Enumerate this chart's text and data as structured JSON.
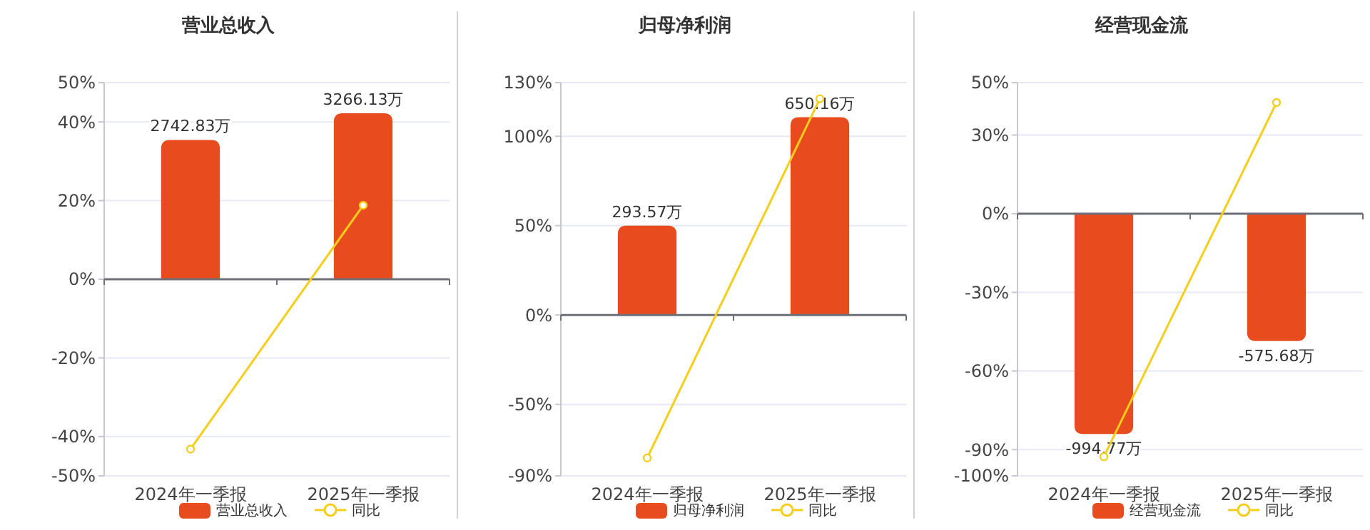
{
  "chart_data": [
    {
      "type": "bar",
      "title": "营业总收入",
      "categories": [
        "2024年一季报",
        "2025年一季报"
      ],
      "ylim": [
        -50,
        50
      ],
      "yticks": [
        {
          "value": -50,
          "label": "-50%"
        },
        {
          "value": -40,
          "label": "-40%"
        },
        {
          "value": -20,
          "label": "-20%"
        },
        {
          "value": 0,
          "label": "0%"
        },
        {
          "value": 20,
          "label": "20%"
        },
        {
          "value": 40,
          "label": "40%"
        },
        {
          "value": 50,
          "label": "50%"
        }
      ],
      "y2lim": [
        -3870,
        3870
      ],
      "grid": "y",
      "legend": "bottom",
      "series": [
        {
          "name": "营业总收入",
          "axis": "y2",
          "color": "#e84c1e",
          "values": [
            2742.83,
            3266.13
          ],
          "value_labels": [
            "2742.83万",
            "3266.13万"
          ]
        },
        {
          "name": "同比",
          "type": "line",
          "color": "#f5cd1c",
          "marker": "circle",
          "values": [
            -43.2,
            18.8
          ]
        }
      ]
    },
    {
      "type": "bar",
      "title": "归母净利润",
      "categories": [
        "2024年一季报",
        "2025年一季报"
      ],
      "ylim": [
        -90,
        130
      ],
      "yticks": [
        {
          "value": -90,
          "label": "-90%"
        },
        {
          "value": -50,
          "label": "-50%"
        },
        {
          "value": 0,
          "label": "0%"
        },
        {
          "value": 50,
          "label": "50%"
        },
        {
          "value": 100,
          "label": "100%"
        },
        {
          "value": 130,
          "label": "130%"
        }
      ],
      "y2lim": [
        -530,
        764
      ],
      "grid": "y",
      "legend": "bottom",
      "series": [
        {
          "name": "归母净利润",
          "axis": "y2",
          "color": "#e84c1e",
          "values": [
            293.57,
            650.16
          ],
          "value_labels": [
            "293.57万",
            "650.16万"
          ]
        },
        {
          "name": "同比",
          "type": "line",
          "color": "#f5cd1c",
          "marker": "circle",
          "values": [
            -80,
            121
          ]
        }
      ]
    },
    {
      "type": "bar",
      "title": "经营现金流",
      "categories": [
        "2024年一季报",
        "2025年一季报"
      ],
      "ylim": [
        -100,
        50
      ],
      "yticks": [
        {
          "value": -100,
          "label": "-100%"
        },
        {
          "value": -90,
          "label": "-90%"
        },
        {
          "value": -60,
          "label": "-60%"
        },
        {
          "value": -30,
          "label": "-30%"
        },
        {
          "value": 0,
          "label": "0%"
        },
        {
          "value": 30,
          "label": "30%"
        },
        {
          "value": 50,
          "label": "50%"
        }
      ],
      "y2lim": [
        -1183,
        588
      ],
      "grid": "y",
      "legend": "bottom",
      "series": [
        {
          "name": "经营现金流",
          "axis": "y2",
          "color": "#e84c1e",
          "values": [
            -994.77,
            -575.68
          ],
          "value_labels": [
            "-994.77万",
            "-575.68万"
          ]
        },
        {
          "name": "同比",
          "type": "line",
          "color": "#f5cd1c",
          "marker": "circle",
          "values": [
            -92.7,
            42.4
          ]
        }
      ]
    }
  ]
}
